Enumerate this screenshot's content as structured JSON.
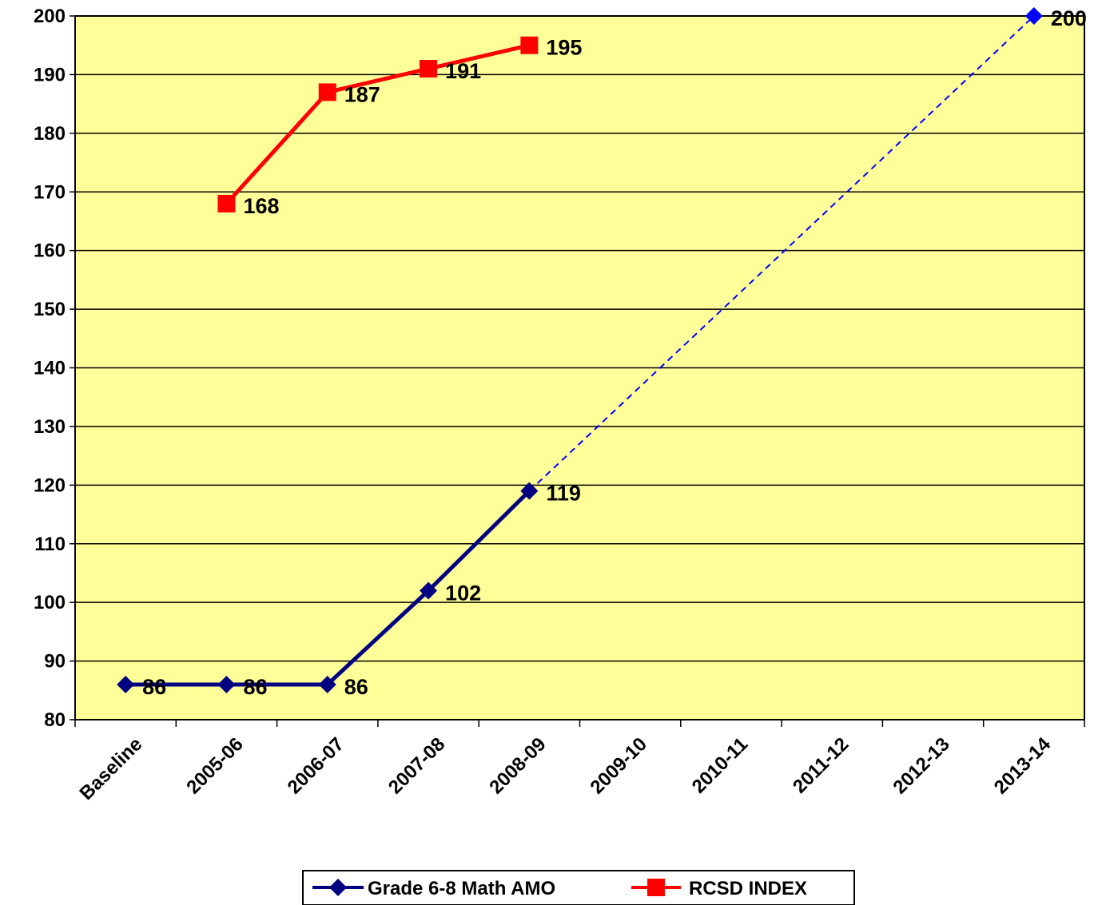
{
  "chart_data": {
    "type": "line",
    "categories": [
      "Baseline",
      "2005-06",
      "2006-07",
      "2007-08",
      "2008-09",
      "2009-10",
      "2010-11",
      "2011-12",
      "2012-13",
      "2013-14"
    ],
    "ylim": [
      80,
      200
    ],
    "yticks": [
      80,
      90,
      100,
      110,
      120,
      130,
      140,
      150,
      160,
      170,
      180,
      190,
      200
    ],
    "grid": true,
    "legend_position": "bottom",
    "plot_background": "#FFFF99",
    "series": [
      {
        "name": "Grade 6-8 Math AMO",
        "color": "#000080",
        "marker": "diamond",
        "values": [
          86,
          86,
          86,
          102,
          119,
          null,
          null,
          null,
          null,
          200
        ],
        "labels": [
          "86",
          "86",
          "86",
          "102",
          "119",
          "",
          "",
          "",
          "",
          "200"
        ],
        "projection": {
          "from": "2008-09",
          "to": "2013-14",
          "style": "dashed",
          "color": "#0000FF"
        }
      },
      {
        "name": "RCSD INDEX",
        "color": "#FF0000",
        "marker": "square",
        "values": [
          null,
          168,
          187,
          191,
          195,
          null,
          null,
          null,
          null,
          null
        ],
        "labels": [
          "",
          "168",
          "187",
          "191",
          "195",
          "",
          "",
          "",
          "",
          ""
        ]
      }
    ]
  }
}
